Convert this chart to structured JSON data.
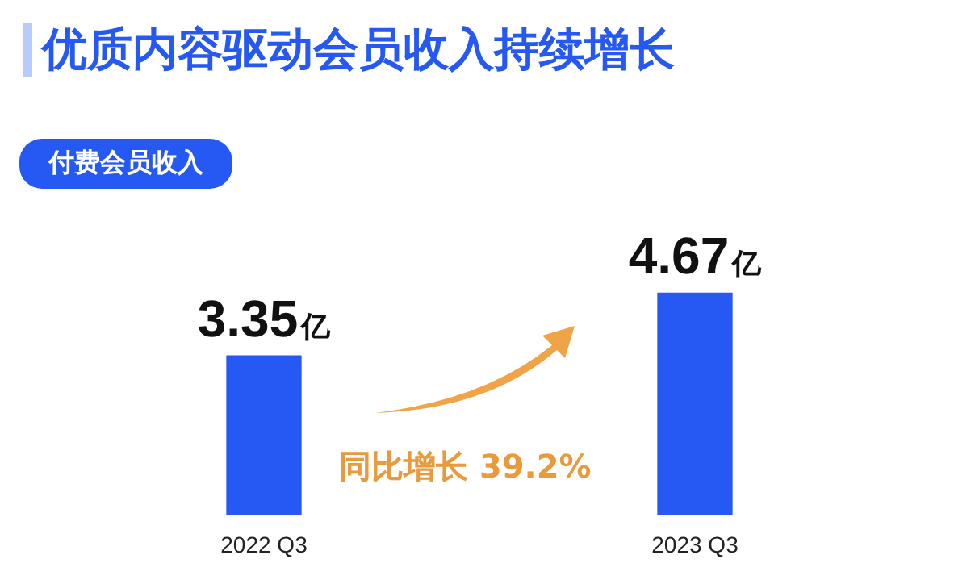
{
  "chart_data": {
    "type": "bar",
    "title": "优质内容驱动会员收入持续增长",
    "subtitle": "付费会员收入",
    "categories": [
      "2022 Q3",
      "2023 Q3"
    ],
    "values": [
      3.35,
      4.67
    ],
    "color": "#2659f4",
    "value_labels": [
      "3.35亿",
      "4.67亿"
    ],
    "annotations": [
      "同比增长 39.2%"
    ],
    "grid": false,
    "legend": false
  }
}
